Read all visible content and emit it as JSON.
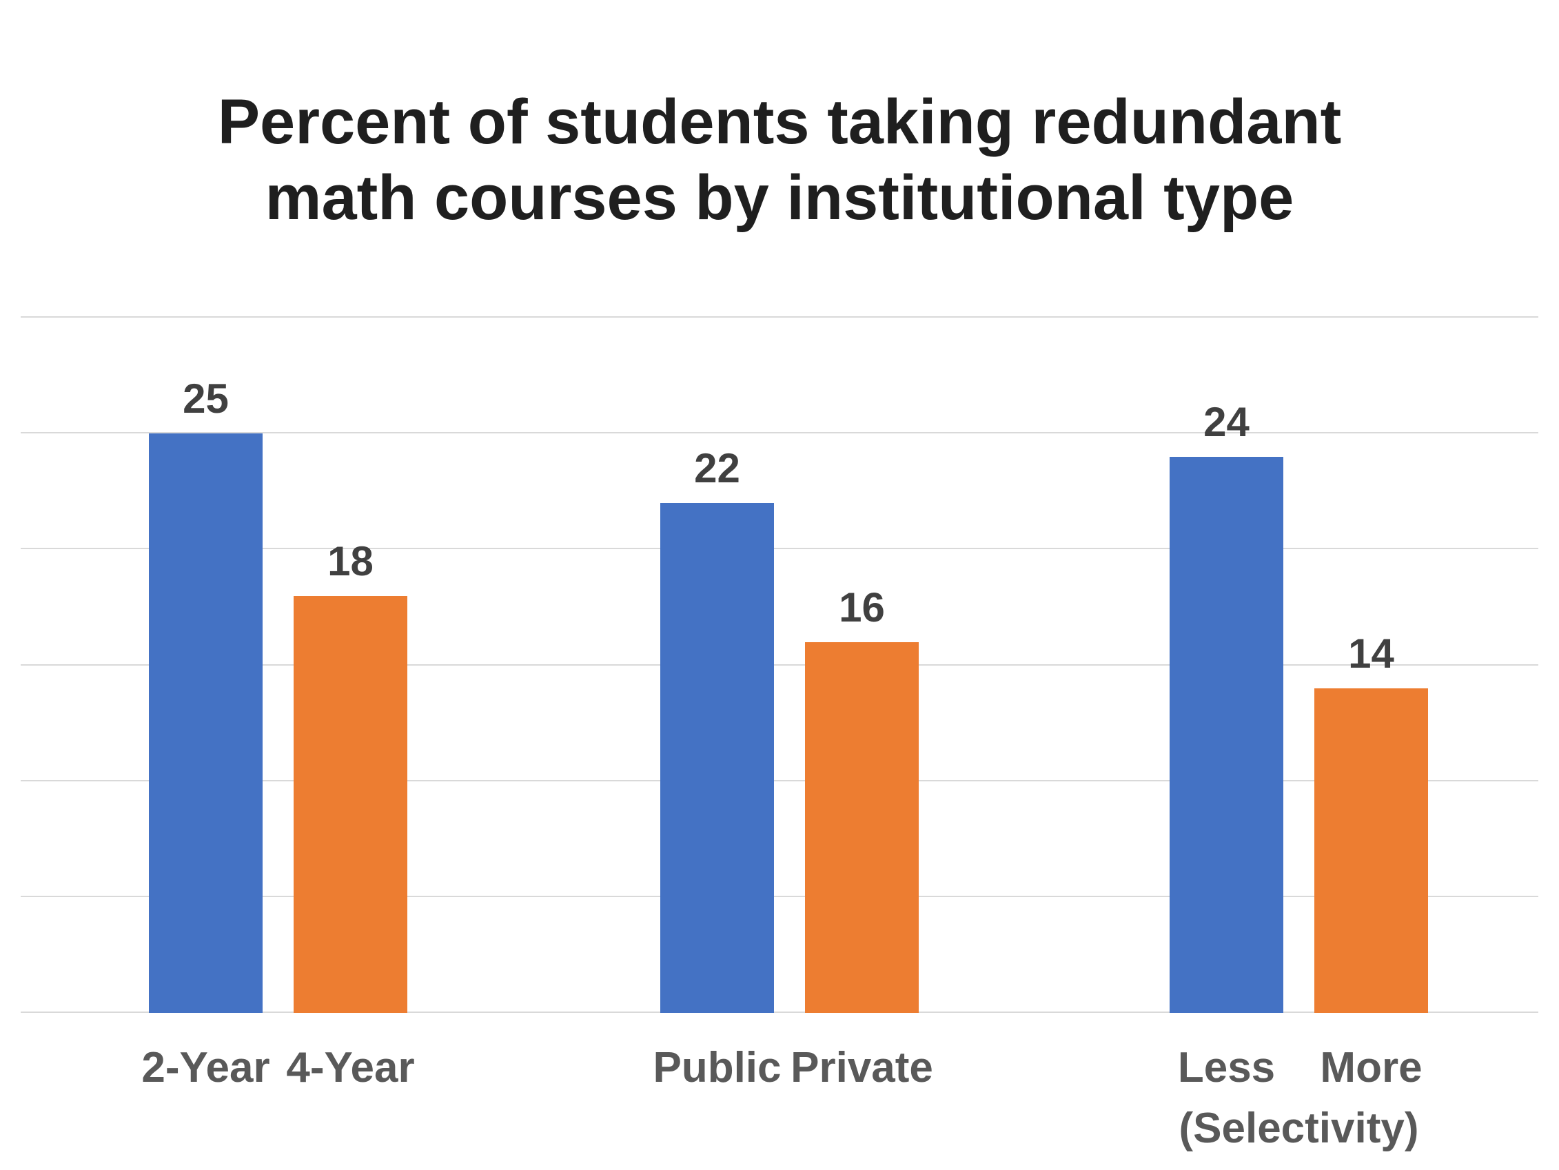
{
  "chart_data": {
    "type": "bar",
    "title": "Percent of students taking redundant math courses by institutional type",
    "xlabel": "",
    "ylabel": "",
    "ylim": [
      0,
      30
    ],
    "gridline_step": 5,
    "grid": true,
    "legend": "none",
    "data_labels": true,
    "categories": [
      "2-Year",
      "4-Year",
      "Public",
      "Private",
      "Less",
      "More"
    ],
    "values": [
      25,
      18,
      22,
      16,
      24,
      14
    ],
    "groups": [
      {
        "sublabel": "",
        "bars": [
          {
            "label": "2-Year",
            "value": 25,
            "color": "blue"
          },
          {
            "label": "4-Year",
            "value": 18,
            "color": "orange"
          }
        ]
      },
      {
        "sublabel": "",
        "bars": [
          {
            "label": "Public",
            "value": 22,
            "color": "blue"
          },
          {
            "label": "Private",
            "value": 16,
            "color": "orange"
          }
        ]
      },
      {
        "sublabel": "(Selectivity)",
        "bars": [
          {
            "label": "Less",
            "value": 24,
            "color": "blue"
          },
          {
            "label": "More",
            "value": 14,
            "color": "orange"
          }
        ]
      }
    ]
  },
  "colors": {
    "blue": "#4472C4",
    "orange": "#ED7D31",
    "gridline": "#D9D9D9",
    "value_label": "#404040",
    "category_label": "#595959",
    "title": "#1F1F1F",
    "background": "#FFFFFF"
  }
}
